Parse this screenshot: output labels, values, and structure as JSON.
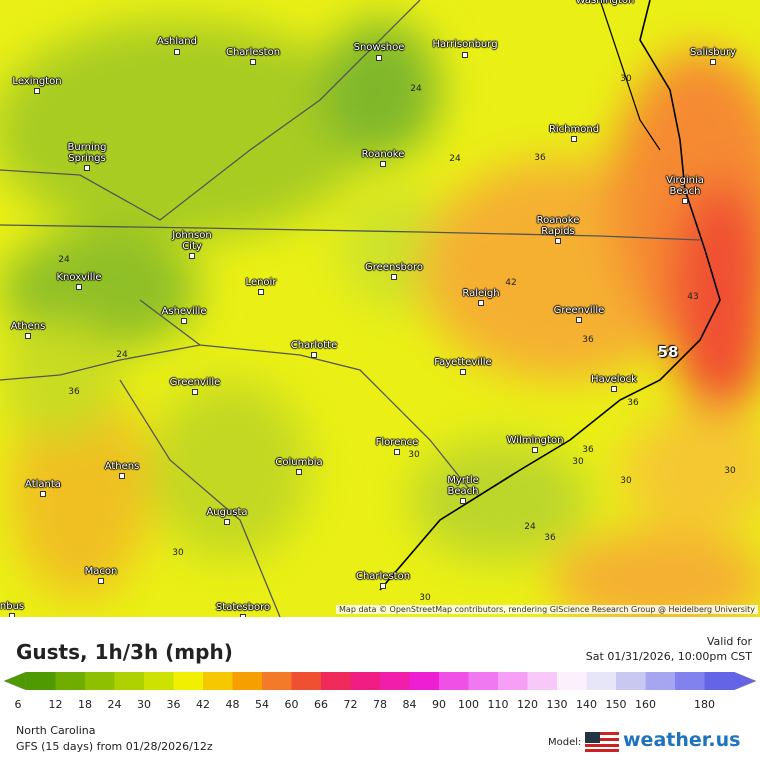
{
  "map": {
    "cities": [
      "Washington",
      "Ashland",
      "Charleston",
      "Snowshoe",
      "Harrisonburg",
      "Salisbury",
      "Lexington",
      "Burning Springs",
      "Roanoke",
      "Richmond",
      "Virginia Beach",
      "Roanoke Rapids",
      "Johnson City",
      "Greensboro",
      "Lenoir",
      "Knoxville",
      "Raleigh",
      "Greenville",
      "Athens",
      "Asheville",
      "Charlotte",
      "Fayetteville",
      "Havelock",
      "Greenville",
      "Wilmington",
      "Florence",
      "Athens",
      "Columbia",
      "Atlanta",
      "Myrtle Beach",
      "Augusta",
      "Macon",
      "Charleston",
      "Statesboro",
      "nbus"
    ],
    "contour_labels": [
      30,
      24,
      24,
      36,
      24,
      42,
      43,
      36,
      24,
      58,
      36,
      36,
      30,
      36,
      30,
      30,
      30,
      24,
      36,
      30,
      30
    ],
    "attribution": "Map data © OpenStreetMap contributors, rendering GIScience Research Group @ Heidelberg University"
  },
  "legend": {
    "title": "Gusts, 1h/3h (mph)",
    "valid_label": "Valid for",
    "valid_time": "Sat 01/31/2026, 10:00pm CST",
    "ticks": [
      6,
      12,
      18,
      24,
      30,
      36,
      42,
      48,
      54,
      60,
      66,
      72,
      78,
      84,
      90,
      100,
      110,
      120,
      130,
      140,
      150,
      160,
      180
    ],
    "colors": [
      "#4f9a00",
      "#6fae00",
      "#8fc000",
      "#aed100",
      "#cde200",
      "#f0f000",
      "#f5c800",
      "#f5a000",
      "#f27a28",
      "#f05032",
      "#f02a5a",
      "#f01e82",
      "#f01eaa",
      "#ee1ed2",
      "#f050e6",
      "#f078f0",
      "#f5a0f5",
      "#f8c8f8",
      "#fdf0fd",
      "#e6e6f8",
      "#c8c8f0",
      "#a6a6f0",
      "#8282ee",
      "#6464e6"
    ]
  },
  "footer": {
    "region": "North Carolina",
    "model_run": "GFS (15 days) from 01/28/2026/12z",
    "model_label": "Model:",
    "brand": "weather.us"
  }
}
